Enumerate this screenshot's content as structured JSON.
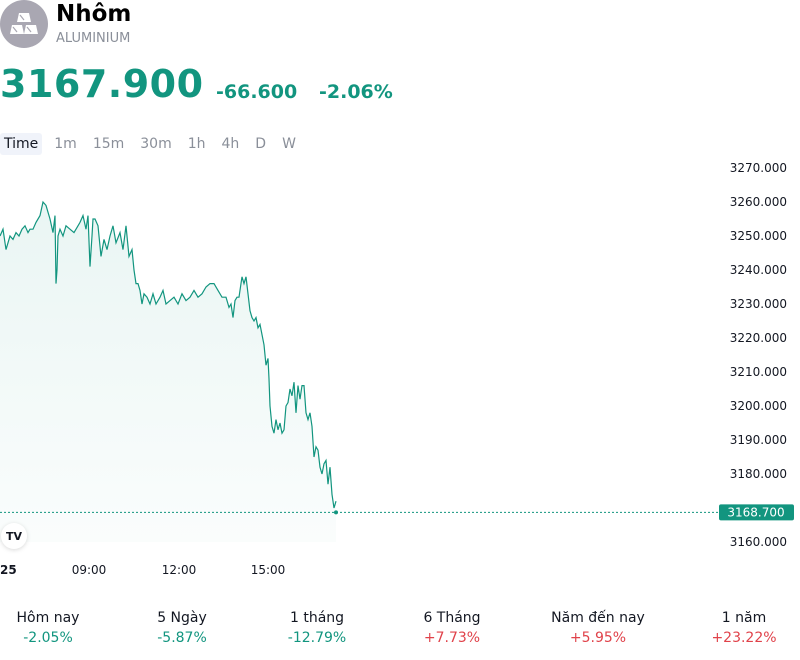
{
  "header": {
    "title": "Nhôm",
    "subtitle": "ALUMINIUM",
    "logo_icon": "silver-bars-icon"
  },
  "quote": {
    "price": "3167.900",
    "change": "-66.600",
    "change_percent": "-2.06%"
  },
  "tabs": [
    "Time",
    "1m",
    "15m",
    "30m",
    "1h",
    "4h",
    "D",
    "W"
  ],
  "tradingview_badge": "TV",
  "chart_data": {
    "type": "area",
    "y_axis_labels": [
      "3270.000",
      "3260.000",
      "3250.000",
      "3240.000",
      "3230.000",
      "3220.000",
      "3210.000",
      "3200.000",
      "3190.000",
      "3180.000",
      "3160.000"
    ],
    "x_axis_labels": [
      "25",
      "09:00",
      "12:00",
      "15:00"
    ],
    "ylim": [
      3155,
      3275
    ],
    "last_price_label": "3168.700",
    "last_price": 3168.7,
    "series_color": "#12957f",
    "x": [
      0,
      3,
      6,
      8,
      10,
      13,
      16,
      19,
      22,
      25,
      28,
      30,
      33,
      36,
      40,
      43,
      46,
      47,
      50,
      53,
      55,
      56,
      57,
      58,
      60,
      63,
      66,
      70,
      74,
      78,
      80,
      83,
      86,
      88,
      90,
      92,
      93,
      95,
      98,
      101,
      104,
      107,
      110,
      113,
      116,
      120,
      123,
      126,
      129,
      132,
      134,
      136,
      138,
      140,
      142,
      144,
      147,
      150,
      153,
      156,
      160,
      163,
      166,
      170,
      174,
      178,
      182,
      186,
      190,
      194,
      198,
      202,
      206,
      210,
      214,
      218,
      222,
      226,
      229,
      231,
      233,
      235,
      237,
      239,
      241,
      242,
      244,
      246,
      248,
      250,
      252,
      254,
      256,
      258,
      260,
      262,
      264,
      266,
      268,
      269,
      270,
      272,
      274,
      276,
      278,
      280,
      282,
      284,
      286,
      288,
      290,
      292,
      294,
      296,
      298,
      300,
      302,
      304,
      305,
      306,
      308,
      310,
      312,
      314,
      316,
      318,
      320,
      322,
      324,
      326,
      328,
      330,
      332,
      334,
      336
    ],
    "values": [
      3250,
      3252,
      3246,
      3248,
      3250,
      3249,
      3251,
      3250,
      3252,
      3253,
      3251,
      3252,
      3252,
      3254,
      3256,
      3260,
      3259,
      3258,
      3255,
      3251,
      3256,
      3236,
      3240,
      3250,
      3252,
      3250,
      3253,
      3252,
      3251,
      3253,
      3254,
      3256,
      3252,
      3256,
      3241,
      3250,
      3255,
      3255,
      3253,
      3244,
      3249,
      3246,
      3250,
      3253,
      3248,
      3251,
      3246,
      3253,
      3244,
      3246,
      3240,
      3236,
      3236,
      3234,
      3230,
      3233,
      3232,
      3230,
      3233,
      3230,
      3232,
      3234,
      3230,
      3231,
      3232,
      3230,
      3233,
      3231,
      3232,
      3234,
      3232,
      3233,
      3235,
      3236,
      3236,
      3234,
      3232,
      3232,
      3229,
      3230,
      3226,
      3231,
      3232,
      3232,
      3236,
      3238,
      3236,
      3238,
      3233,
      3228,
      3226,
      3225,
      3226,
      3223,
      3224,
      3221,
      3218,
      3212,
      3214,
      3208,
      3200,
      3194,
      3192,
      3196,
      3193,
      3195,
      3192,
      3193,
      3200,
      3201,
      3205,
      3203,
      3207,
      3198,
      3206,
      3202,
      3206,
      3206,
      3202,
      3198,
      3196,
      3198,
      3194,
      3185,
      3188,
      3187,
      3182,
      3180,
      3183,
      3184,
      3177,
      3182,
      3174,
      3170,
      3172
    ]
  },
  "stats": [
    {
      "label": "Hôm nay",
      "value": "-2.05%",
      "trend": "down"
    },
    {
      "label": "5 Ngày",
      "value": "-5.87%",
      "trend": "down"
    },
    {
      "label": "1 tháng",
      "value": "-12.79%",
      "trend": "down"
    },
    {
      "label": "6 Tháng",
      "value": "+7.73%",
      "trend": "up"
    },
    {
      "label": "Năm đến nay",
      "value": "+5.95%",
      "trend": "up"
    },
    {
      "label": "1 năm",
      "value": "+23.22%",
      "trend": "up"
    }
  ]
}
